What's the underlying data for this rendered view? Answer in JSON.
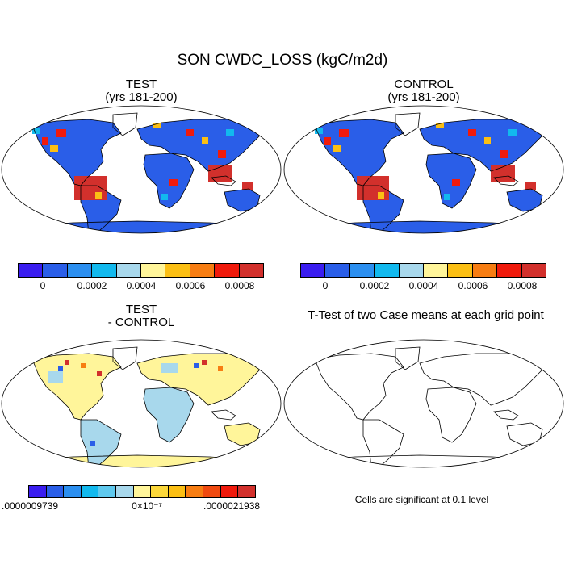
{
  "title": "SON CWDC_LOSS (kgC/m2d)",
  "panels": {
    "test": {
      "title": "TEST",
      "subtitle": "(yrs 181-200)"
    },
    "control": {
      "title": "CONTROL",
      "subtitle": "(yrs 181-200)"
    },
    "diff": {
      "title": "TEST",
      "subtitle": "- CONTROL"
    },
    "ttest": {
      "title": "T-Test of two Case means at each grid point",
      "note": "Cells are significant at 0.1 level"
    }
  },
  "colorbar_main": {
    "colors": [
      "#3a1df0",
      "#2a5ee8",
      "#2b8ff0",
      "#12b9ee",
      "#a8d8ec",
      "#fff59a",
      "#fbbf14",
      "#f77d12",
      "#f01a0c",
      "#d2302c"
    ],
    "tick_labels": [
      "0",
      "0.0002",
      "0.0004",
      "0.0006",
      "0.0008"
    ]
  },
  "colorbar_diff": {
    "colors": [
      "#3a1df0",
      "#2a5ee8",
      "#2b8ff0",
      "#12b9ee",
      "#5fc9ee",
      "#a8d8ec",
      "#fff59a",
      "#fbd73a",
      "#fbbf14",
      "#f77d12",
      "#f04a10",
      "#f01a0c",
      "#d2302c"
    ],
    "tick_labels": [
      ".0000009739",
      "0×10⁻⁷",
      ".0000021938"
    ]
  }
}
